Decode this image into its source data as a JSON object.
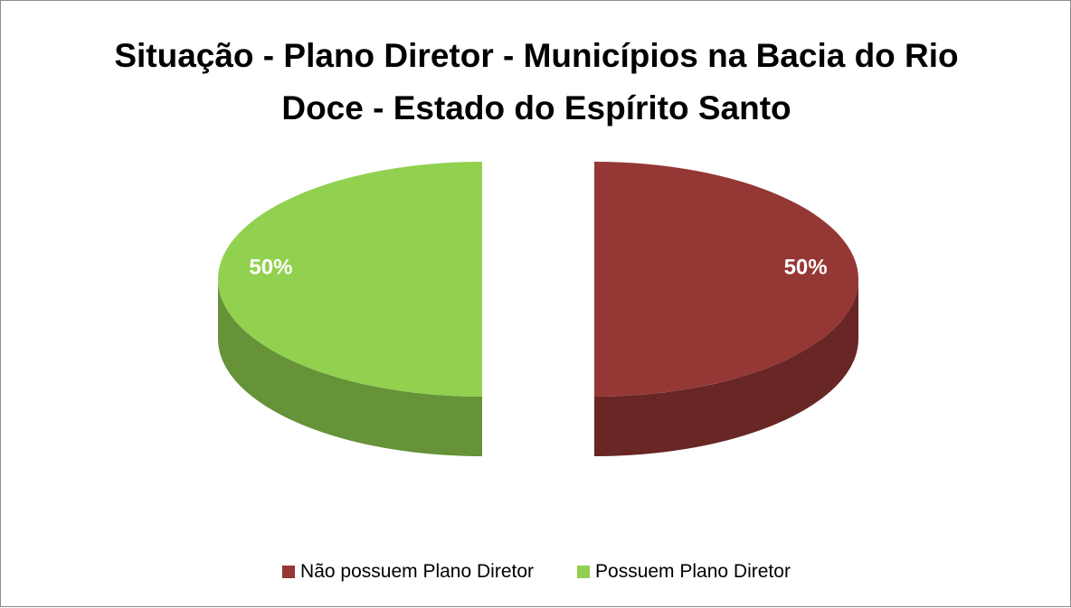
{
  "chart_data": {
    "type": "pie",
    "title": "Situação - Plano Diretor - Municípios na Bacia do Rio Doce - Estado do Espírito Santo",
    "categories": [
      "Não possuem Plano Diretor",
      "Possuem Plano Diretor"
    ],
    "values": [
      50,
      50
    ],
    "value_labels": [
      "50%",
      "50%"
    ],
    "colors": [
      "#953735",
      "#92d050"
    ],
    "legend": "bottom"
  }
}
